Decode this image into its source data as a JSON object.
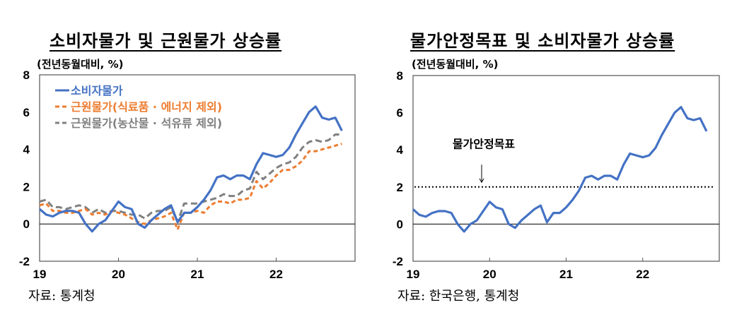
{
  "chart_data": [
    {
      "type": "line",
      "title": "소비자물가 및 근원물가 상승률",
      "ylabel": "(전년동월대비, %)",
      "source": "자료: 통계청",
      "ylim": [
        -2,
        8
      ],
      "yticks": [
        "-2",
        "0",
        "2",
        "4",
        "6",
        "8"
      ],
      "xticks": [
        "19",
        "20",
        "21",
        "22"
      ],
      "xrange": [
        "2019-01",
        "2022-12"
      ],
      "legend_position": "top-left",
      "start": "2019-01",
      "series": [
        {
          "name": "소비자물가",
          "color": "#4472C4",
          "style": "solid",
          "values": [
            0.8,
            0.5,
            0.4,
            0.6,
            0.7,
            0.7,
            0.6,
            0.0,
            -0.4,
            0.0,
            0.2,
            0.7,
            1.2,
            0.9,
            0.8,
            0.0,
            -0.2,
            0.2,
            0.5,
            0.8,
            1.0,
            0.1,
            0.6,
            0.6,
            0.9,
            1.3,
            1.8,
            2.5,
            2.6,
            2.4,
            2.6,
            2.6,
            2.4,
            3.2,
            3.8,
            3.7,
            3.6,
            3.7,
            4.1,
            4.8,
            5.4,
            6.0,
            6.3,
            5.7,
            5.6,
            5.7,
            5.0
          ]
        },
        {
          "name": "근원물가(식료품 · 에너지 제외)",
          "color": "#ED7D31",
          "style": "dashed",
          "values": [
            1.0,
            1.1,
            0.7,
            0.7,
            0.6,
            0.6,
            0.7,
            0.8,
            0.5,
            0.6,
            0.5,
            0.7,
            0.6,
            0.5,
            0.3,
            0.1,
            0.0,
            0.2,
            0.3,
            0.4,
            0.6,
            -0.3,
            0.6,
            0.6,
            0.7,
            0.6,
            1.0,
            1.2,
            1.2,
            1.1,
            1.3,
            1.3,
            1.4,
            2.3,
            1.9,
            2.2,
            2.6,
            2.9,
            2.9,
            3.1,
            3.4,
            3.9,
            3.9,
            4.0,
            4.1,
            4.2,
            4.3
          ]
        },
        {
          "name": "근원물가(농산물 · 석유류 제외)",
          "color": "#808080",
          "style": "dashed",
          "values": [
            1.2,
            1.3,
            0.9,
            0.9,
            0.8,
            0.9,
            1.0,
            0.9,
            0.6,
            0.8,
            0.6,
            0.7,
            0.7,
            0.6,
            0.5,
            0.5,
            0.3,
            0.6,
            0.7,
            0.7,
            0.9,
            0.1,
            1.1,
            1.1,
            1.1,
            1.2,
            1.3,
            1.4,
            1.6,
            1.5,
            1.5,
            1.8,
            1.9,
            2.8,
            2.4,
            2.7,
            3.0,
            3.2,
            3.3,
            3.6,
            4.1,
            4.4,
            4.5,
            4.4,
            4.5,
            4.8,
            4.8
          ]
        }
      ]
    },
    {
      "type": "line",
      "title": "물가안정목표 및 소비자물가 상승률",
      "ylabel": "(전년동월대비, %)",
      "source": "자료: 한국은행, 통계청",
      "ylim": [
        -2,
        8
      ],
      "yticks": [
        "-2",
        "0",
        "2",
        "4",
        "6",
        "8"
      ],
      "xticks": [
        "19",
        "20",
        "21",
        "22"
      ],
      "xrange": [
        "2019-01",
        "2022-12"
      ],
      "start": "2019-01",
      "target": {
        "label": "물가안정목표",
        "value": 2,
        "style": "dotted",
        "color": "#000000"
      },
      "series": [
        {
          "color": "#4472C4",
          "style": "solid",
          "values": [
            0.8,
            0.5,
            0.4,
            0.6,
            0.7,
            0.7,
            0.6,
            0.0,
            -0.4,
            0.0,
            0.2,
            0.7,
            1.2,
            0.9,
            0.8,
            0.0,
            -0.2,
            0.2,
            0.5,
            0.8,
            1.0,
            0.1,
            0.6,
            0.6,
            0.9,
            1.3,
            1.8,
            2.5,
            2.6,
            2.4,
            2.6,
            2.6,
            2.4,
            3.2,
            3.8,
            3.7,
            3.6,
            3.7,
            4.1,
            4.8,
            5.4,
            6.0,
            6.3,
            5.7,
            5.6,
            5.7,
            5.0
          ]
        }
      ]
    }
  ]
}
